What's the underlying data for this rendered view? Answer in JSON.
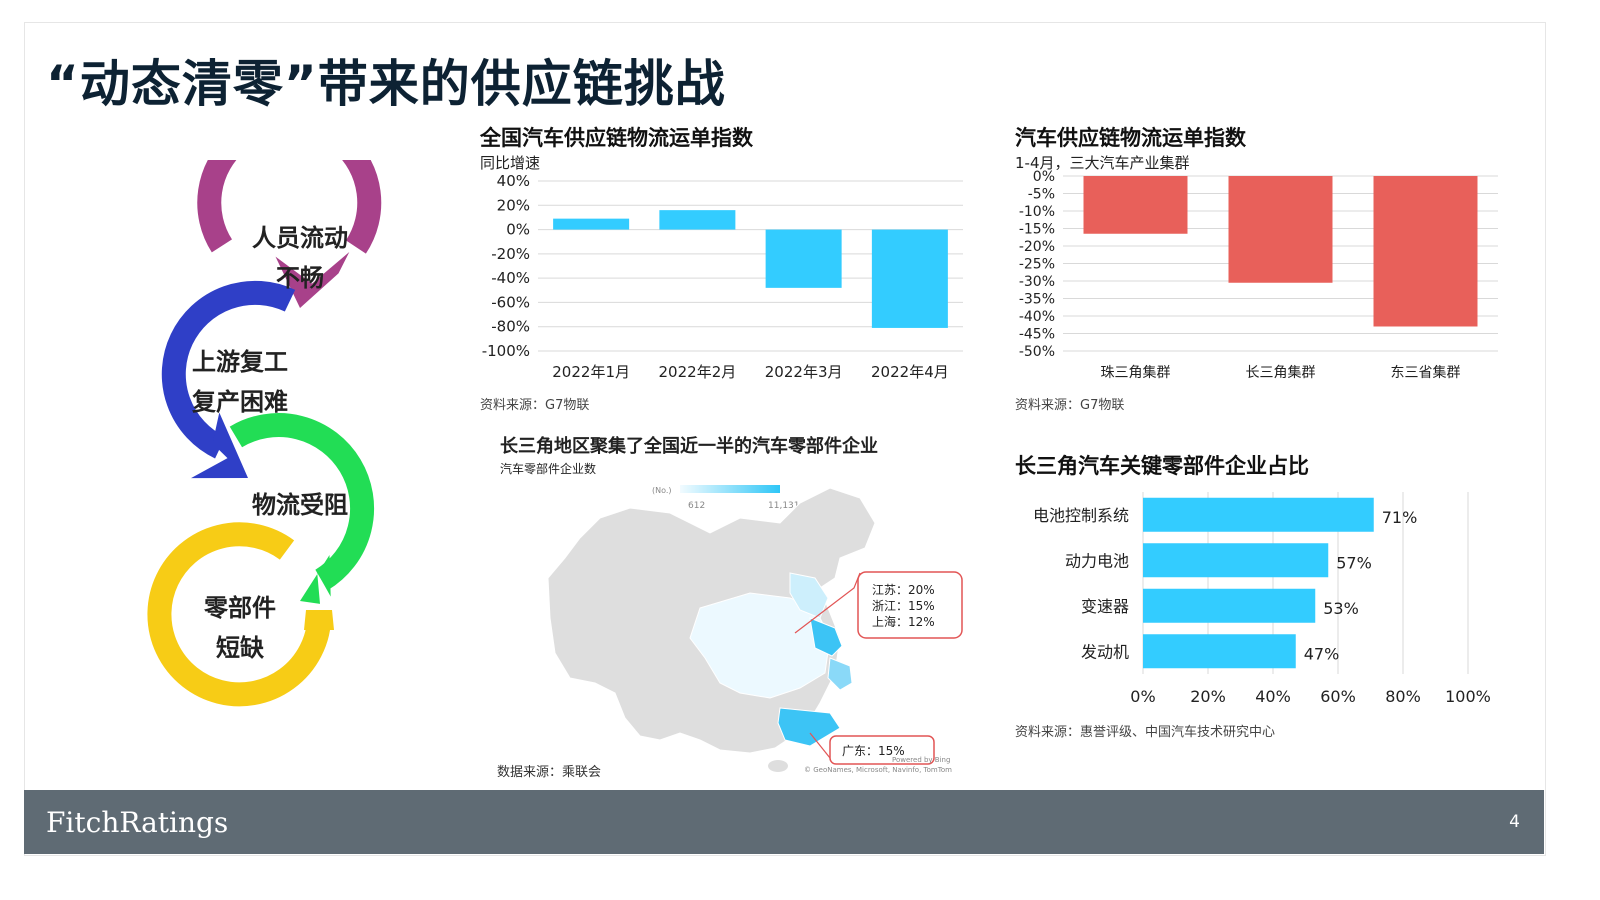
{
  "page_title": "“动态清零”带来的供应链挑战",
  "cycle": {
    "items": [
      {
        "line1": "人员流动",
        "line2": "不畅",
        "color": "#a8418a"
      },
      {
        "line1": "上游复工",
        "line2": "复产困难",
        "color": "#2f3fc7"
      },
      {
        "line1": "物流受阻",
        "line2": "",
        "color": "#22dd55"
      },
      {
        "line1": "零部件",
        "line2": "短缺",
        "color": "#f7cc16"
      }
    ]
  },
  "chart1": {
    "title": "全国汽车供应链物流运单指数",
    "subtitle": "同比增速",
    "source": "资料来源：G7物联"
  },
  "chart2": {
    "title": "汽车供应链物流运单指数",
    "subtitle": "1-4月，三大汽车产业集群",
    "source": "资料来源：G7物联"
  },
  "map": {
    "title": "长三角地区聚集了全国近一半的汽车零部件企业",
    "subtitle": "汽车零部件企业数",
    "legend_unit": "(No.)",
    "legend_min": "612",
    "legend_max": "11,131",
    "callout1": [
      "江苏：20%",
      "浙江：15%",
      "上海：12%"
    ],
    "callout2": "广东：15%",
    "attribution1": "Powered by Bing",
    "attribution2": "© GeoNames, Microsoft, Navinfo, TomTom",
    "source": "数据来源：乘联会"
  },
  "chart4": {
    "title": "长三角汽车关键零部件企业占比",
    "source": "资料来源：惠誉评级、中国汽车技术研究中心"
  },
  "chart_data": [
    {
      "type": "bar",
      "title": "全国汽车供应链物流运单指数",
      "subtitle": "同比增速",
      "categories": [
        "2022年1月",
        "2022年2月",
        "2022年3月",
        "2022年4月"
      ],
      "values": [
        9,
        16,
        -48,
        -81
      ],
      "unit": "%",
      "ylim": [
        -100,
        40
      ],
      "yticks": [
        40,
        20,
        0,
        -20,
        -40,
        -60,
        -80,
        -100
      ],
      "color": "#33ccff",
      "grid": true
    },
    {
      "type": "bar",
      "title": "汽车供应链物流运单指数",
      "subtitle": "1-4月，三大汽车产业集群",
      "categories": [
        "珠三角集群",
        "长三角集群",
        "东三省集群"
      ],
      "values": [
        -16.5,
        -30.5,
        -43
      ],
      "unit": "%",
      "ylim": [
        -50,
        0
      ],
      "yticks": [
        0,
        -5,
        -10,
        -15,
        -20,
        -25,
        -30,
        -35,
        -40,
        -45,
        -50
      ],
      "color": "#e8605a",
      "grid": true
    },
    {
      "type": "bar",
      "orientation": "horizontal",
      "title": "长三角汽车关键零部件企业占比",
      "categories": [
        "电池控制系统",
        "动力电池",
        "变速器",
        "发动机"
      ],
      "values": [
        71,
        57,
        53,
        47
      ],
      "data_labels": [
        "71%",
        "57%",
        "53%",
        "47%"
      ],
      "unit": "%",
      "xlim": [
        0,
        100
      ],
      "xticks": [
        0,
        20,
        40,
        60,
        80,
        100
      ],
      "color": "#33ccff",
      "grid": true
    }
  ],
  "footer": {
    "logo": "FitchRatings",
    "page_number": "4"
  }
}
